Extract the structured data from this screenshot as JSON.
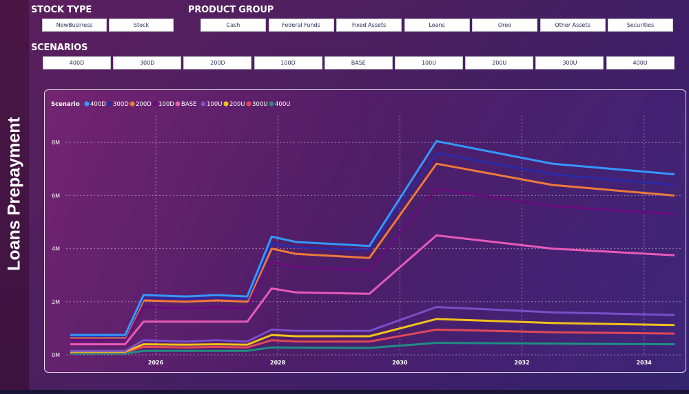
{
  "page_title": "Loans Prepayment",
  "filters": {
    "stock_type": {
      "label": "STOCK TYPE",
      "options": [
        "NewBusiness",
        "Stock"
      ]
    },
    "product_group": {
      "label": "PRODUCT GROUP",
      "options": [
        "Cash",
        "Federal Funds",
        "Fixed Assets",
        "Loans",
        "Oreo",
        "Other Assets",
        "Securities"
      ]
    },
    "scenarios": {
      "label": "SCENARIOS",
      "options": [
        "400D",
        "300D",
        "200D",
        "100D",
        "BASE",
        "100U",
        "200U",
        "300U",
        "400U"
      ]
    }
  },
  "colors": {
    "400D": "#3399ff",
    "300D": "#2a2aa8",
    "200D": "#f07a3a",
    "100D": "#6a0a7e",
    "BASE": "#e85ab8",
    "100U": "#7b4fc8",
    "200U": "#f2c21a",
    "300U": "#e04858",
    "400U": "#1f8e84"
  },
  "chart_data": {
    "type": "line",
    "legend_title": "Scenario",
    "legend_position": "top-left",
    "grid": true,
    "x_ticks": [
      "2026",
      "2028",
      "2030",
      "2032",
      "2034"
    ],
    "y_ticks": [
      "0M",
      "2M",
      "4M",
      "6M",
      "8M"
    ],
    "ylim": [
      0,
      8.5
    ],
    "x": [
      2024.6,
      2025.5,
      2025.8,
      2026.5,
      2027.0,
      2027.5,
      2027.9,
      2028.3,
      2029.5,
      2030.6,
      2032.5,
      2034.5
    ],
    "series": [
      {
        "name": "400D",
        "values": [
          0.75,
          0.75,
          2.25,
          2.2,
          2.25,
          2.2,
          4.45,
          4.25,
          4.1,
          8.05,
          7.2,
          6.8
        ]
      },
      {
        "name": "300D",
        "values": [
          0.7,
          0.7,
          2.15,
          2.1,
          2.15,
          2.1,
          4.2,
          4.05,
          3.95,
          7.6,
          6.8,
          6.4
        ]
      },
      {
        "name": "200D",
        "values": [
          0.65,
          0.65,
          2.05,
          2.0,
          2.05,
          2.0,
          4.0,
          3.8,
          3.65,
          7.2,
          6.4,
          6.0
        ]
      },
      {
        "name": "100D",
        "values": [
          0.55,
          0.55,
          1.8,
          1.75,
          1.8,
          1.75,
          3.5,
          3.3,
          3.2,
          6.25,
          5.6,
          5.3
        ]
      },
      {
        "name": "BASE",
        "values": [
          0.4,
          0.4,
          1.25,
          1.25,
          1.25,
          1.25,
          2.5,
          2.35,
          2.3,
          4.5,
          4.0,
          3.75
        ]
      },
      {
        "name": "100U",
        "values": [
          0.15,
          0.15,
          0.55,
          0.5,
          0.55,
          0.5,
          0.95,
          0.9,
          0.9,
          1.8,
          1.6,
          1.5
        ]
      },
      {
        "name": "200U",
        "values": [
          0.12,
          0.12,
          0.4,
          0.38,
          0.4,
          0.38,
          0.75,
          0.7,
          0.7,
          1.35,
          1.2,
          1.12
        ]
      },
      {
        "name": "300U",
        "values": [
          0.1,
          0.1,
          0.3,
          0.28,
          0.3,
          0.28,
          0.55,
          0.5,
          0.5,
          0.95,
          0.85,
          0.8
        ]
      },
      {
        "name": "400U",
        "values": [
          0.05,
          0.05,
          0.15,
          0.15,
          0.15,
          0.15,
          0.28,
          0.27,
          0.26,
          0.45,
          0.42,
          0.4
        ]
      }
    ]
  }
}
